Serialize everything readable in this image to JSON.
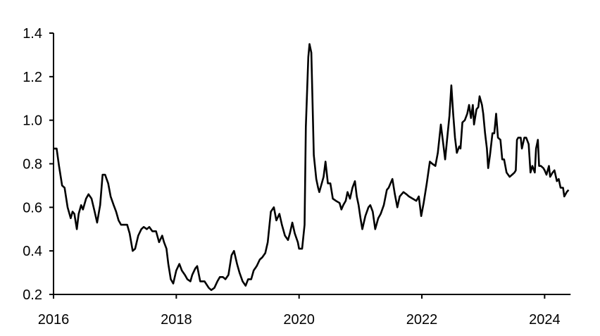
{
  "chart_data": {
    "type": "line",
    "title": "",
    "xlabel": "",
    "ylabel": "",
    "xlim": [
      2016,
      2024.4
    ],
    "ylim": [
      0.2,
      1.4
    ],
    "x_ticks": [
      2016,
      2018,
      2020,
      2022,
      2024
    ],
    "x_tick_labels": [
      "2016",
      "2018",
      "2020",
      "2022",
      "2024"
    ],
    "y_ticks": [
      0.2,
      0.4,
      0.6,
      0.8,
      1.0,
      1.2,
      1.4
    ],
    "y_tick_labels": [
      "0.2",
      "0.4",
      "0.6",
      "0.8",
      "1.0",
      "1.2",
      "1.4"
    ],
    "grid": false,
    "legend": "none",
    "line_color": "#000000",
    "series": [
      {
        "points": [
          [
            2016.0,
            0.87
          ],
          [
            2016.05,
            0.87
          ],
          [
            2016.09,
            0.79
          ],
          [
            2016.14,
            0.7
          ],
          [
            2016.18,
            0.69
          ],
          [
            2016.23,
            0.6
          ],
          [
            2016.28,
            0.55
          ],
          [
            2016.31,
            0.58
          ],
          [
            2016.34,
            0.57
          ],
          [
            2016.38,
            0.5
          ],
          [
            2016.41,
            0.57
          ],
          [
            2016.45,
            0.61
          ],
          [
            2016.48,
            0.59
          ],
          [
            2016.53,
            0.64
          ],
          [
            2016.57,
            0.66
          ],
          [
            2016.62,
            0.64
          ],
          [
            2016.67,
            0.58
          ],
          [
            2016.71,
            0.53
          ],
          [
            2016.76,
            0.61
          ],
          [
            2016.8,
            0.75
          ],
          [
            2016.84,
            0.75
          ],
          [
            2016.89,
            0.71
          ],
          [
            2016.93,
            0.65
          ],
          [
            2016.98,
            0.61
          ],
          [
            2017.02,
            0.58
          ],
          [
            2017.06,
            0.54
          ],
          [
            2017.1,
            0.52
          ],
          [
            2017.15,
            0.52
          ],
          [
            2017.2,
            0.52
          ],
          [
            2017.24,
            0.48
          ],
          [
            2017.29,
            0.4
          ],
          [
            2017.33,
            0.41
          ],
          [
            2017.38,
            0.47
          ],
          [
            2017.43,
            0.5
          ],
          [
            2017.47,
            0.51
          ],
          [
            2017.52,
            0.5
          ],
          [
            2017.56,
            0.51
          ],
          [
            2017.61,
            0.49
          ],
          [
            2017.67,
            0.49
          ],
          [
            2017.72,
            0.44
          ],
          [
            2017.77,
            0.47
          ],
          [
            2017.8,
            0.44
          ],
          [
            2017.84,
            0.41
          ],
          [
            2017.87,
            0.34
          ],
          [
            2017.91,
            0.27
          ],
          [
            2017.95,
            0.25
          ],
          [
            2018.0,
            0.31
          ],
          [
            2018.05,
            0.34
          ],
          [
            2018.09,
            0.31
          ],
          [
            2018.14,
            0.29
          ],
          [
            2018.18,
            0.27
          ],
          [
            2018.23,
            0.26
          ],
          [
            2018.26,
            0.29
          ],
          [
            2018.31,
            0.32
          ],
          [
            2018.34,
            0.33
          ],
          [
            2018.39,
            0.26
          ],
          [
            2018.46,
            0.26
          ],
          [
            2018.53,
            0.23
          ],
          [
            2018.57,
            0.22
          ],
          [
            2018.62,
            0.23
          ],
          [
            2018.67,
            0.26
          ],
          [
            2018.71,
            0.28
          ],
          [
            2018.76,
            0.28
          ],
          [
            2018.8,
            0.27
          ],
          [
            2018.85,
            0.29
          ],
          [
            2018.9,
            0.38
          ],
          [
            2018.94,
            0.4
          ],
          [
            2018.99,
            0.34
          ],
          [
            2019.03,
            0.3
          ],
          [
            2019.08,
            0.26
          ],
          [
            2019.13,
            0.24
          ],
          [
            2019.17,
            0.27
          ],
          [
            2019.22,
            0.27
          ],
          [
            2019.26,
            0.31
          ],
          [
            2019.31,
            0.33
          ],
          [
            2019.36,
            0.36
          ],
          [
            2019.4,
            0.37
          ],
          [
            2019.45,
            0.39
          ],
          [
            2019.49,
            0.44
          ],
          [
            2019.54,
            0.58
          ],
          [
            2019.59,
            0.6
          ],
          [
            2019.63,
            0.54
          ],
          [
            2019.68,
            0.57
          ],
          [
            2019.72,
            0.52
          ],
          [
            2019.77,
            0.47
          ],
          [
            2019.82,
            0.45
          ],
          [
            2019.85,
            0.48
          ],
          [
            2019.89,
            0.53
          ],
          [
            2019.93,
            0.48
          ],
          [
            2019.98,
            0.44
          ],
          [
            2020.0,
            0.41
          ],
          [
            2020.05,
            0.41
          ],
          [
            2020.09,
            0.52
          ],
          [
            2020.11,
            0.97
          ],
          [
            2020.15,
            1.29
          ],
          [
            2020.17,
            1.35
          ],
          [
            2020.2,
            1.31
          ],
          [
            2020.22,
            1.07
          ],
          [
            2020.24,
            0.84
          ],
          [
            2020.28,
            0.73
          ],
          [
            2020.31,
            0.69
          ],
          [
            2020.33,
            0.67
          ],
          [
            2020.37,
            0.71
          ],
          [
            2020.4,
            0.74
          ],
          [
            2020.43,
            0.81
          ],
          [
            2020.47,
            0.71
          ],
          [
            2020.51,
            0.71
          ],
          [
            2020.55,
            0.64
          ],
          [
            2020.6,
            0.63
          ],
          [
            2020.66,
            0.62
          ],
          [
            2020.69,
            0.59
          ],
          [
            2020.72,
            0.61
          ],
          [
            2020.76,
            0.63
          ],
          [
            2020.79,
            0.67
          ],
          [
            2020.83,
            0.64
          ],
          [
            2020.87,
            0.69
          ],
          [
            2020.91,
            0.72
          ],
          [
            2020.94,
            0.65
          ],
          [
            2020.97,
            0.61
          ],
          [
            2021.0,
            0.55
          ],
          [
            2021.03,
            0.5
          ],
          [
            2021.08,
            0.56
          ],
          [
            2021.13,
            0.6
          ],
          [
            2021.16,
            0.61
          ],
          [
            2021.2,
            0.58
          ],
          [
            2021.24,
            0.5
          ],
          [
            2021.29,
            0.55
          ],
          [
            2021.33,
            0.57
          ],
          [
            2021.38,
            0.61
          ],
          [
            2021.43,
            0.68
          ],
          [
            2021.46,
            0.69
          ],
          [
            2021.52,
            0.73
          ],
          [
            2021.56,
            0.66
          ],
          [
            2021.6,
            0.6
          ],
          [
            2021.64,
            0.65
          ],
          [
            2021.7,
            0.67
          ],
          [
            2021.75,
            0.66
          ],
          [
            2021.79,
            0.65
          ],
          [
            2021.85,
            0.64
          ],
          [
            2021.91,
            0.63
          ],
          [
            2021.95,
            0.65
          ],
          [
            2021.99,
            0.56
          ],
          [
            2022.03,
            0.62
          ],
          [
            2022.08,
            0.71
          ],
          [
            2022.13,
            0.81
          ],
          [
            2022.17,
            0.8
          ],
          [
            2022.22,
            0.79
          ],
          [
            2022.26,
            0.85
          ],
          [
            2022.31,
            0.98
          ],
          [
            2022.34,
            0.91
          ],
          [
            2022.38,
            0.82
          ],
          [
            2022.41,
            0.91
          ],
          [
            2022.45,
            1.02
          ],
          [
            2022.48,
            1.16
          ],
          [
            2022.51,
            1.03
          ],
          [
            2022.54,
            0.92
          ],
          [
            2022.57,
            0.85
          ],
          [
            2022.61,
            0.88
          ],
          [
            2022.63,
            0.87
          ],
          [
            2022.66,
            0.99
          ],
          [
            2022.7,
            1.0
          ],
          [
            2022.74,
            1.03
          ],
          [
            2022.77,
            1.07
          ],
          [
            2022.8,
            1.01
          ],
          [
            2022.83,
            1.07
          ],
          [
            2022.85,
            0.98
          ],
          [
            2022.89,
            1.05
          ],
          [
            2022.92,
            1.06
          ],
          [
            2022.94,
            1.11
          ],
          [
            2022.98,
            1.07
          ],
          [
            2023.0,
            1.03
          ],
          [
            2023.03,
            0.94
          ],
          [
            2023.06,
            0.87
          ],
          [
            2023.08,
            0.78
          ],
          [
            2023.11,
            0.84
          ],
          [
            2023.15,
            0.94
          ],
          [
            2023.18,
            0.94
          ],
          [
            2023.21,
            1.03
          ],
          [
            2023.24,
            0.92
          ],
          [
            2023.28,
            0.91
          ],
          [
            2023.31,
            0.82
          ],
          [
            2023.34,
            0.82
          ],
          [
            2023.38,
            0.76
          ],
          [
            2023.43,
            0.74
          ],
          [
            2023.47,
            0.75
          ],
          [
            2023.51,
            0.76
          ],
          [
            2023.53,
            0.77
          ],
          [
            2023.55,
            0.91
          ],
          [
            2023.57,
            0.92
          ],
          [
            2023.61,
            0.92
          ],
          [
            2023.63,
            0.87
          ],
          [
            2023.67,
            0.92
          ],
          [
            2023.7,
            0.92
          ],
          [
            2023.74,
            0.89
          ],
          [
            2023.77,
            0.76
          ],
          [
            2023.8,
            0.79
          ],
          [
            2023.84,
            0.76
          ],
          [
            2023.86,
            0.87
          ],
          [
            2023.89,
            0.91
          ],
          [
            2023.91,
            0.79
          ],
          [
            2023.94,
            0.79
          ],
          [
            2023.98,
            0.78
          ],
          [
            2024.0,
            0.77
          ],
          [
            2024.03,
            0.75
          ],
          [
            2024.07,
            0.79
          ],
          [
            2024.09,
            0.74
          ],
          [
            2024.13,
            0.76
          ],
          [
            2024.16,
            0.77
          ],
          [
            2024.2,
            0.72
          ],
          [
            2024.23,
            0.73
          ],
          [
            2024.26,
            0.69
          ],
          [
            2024.3,
            0.69
          ],
          [
            2024.32,
            0.65
          ],
          [
            2024.36,
            0.67
          ],
          [
            2024.39,
            0.68
          ]
        ]
      }
    ]
  }
}
